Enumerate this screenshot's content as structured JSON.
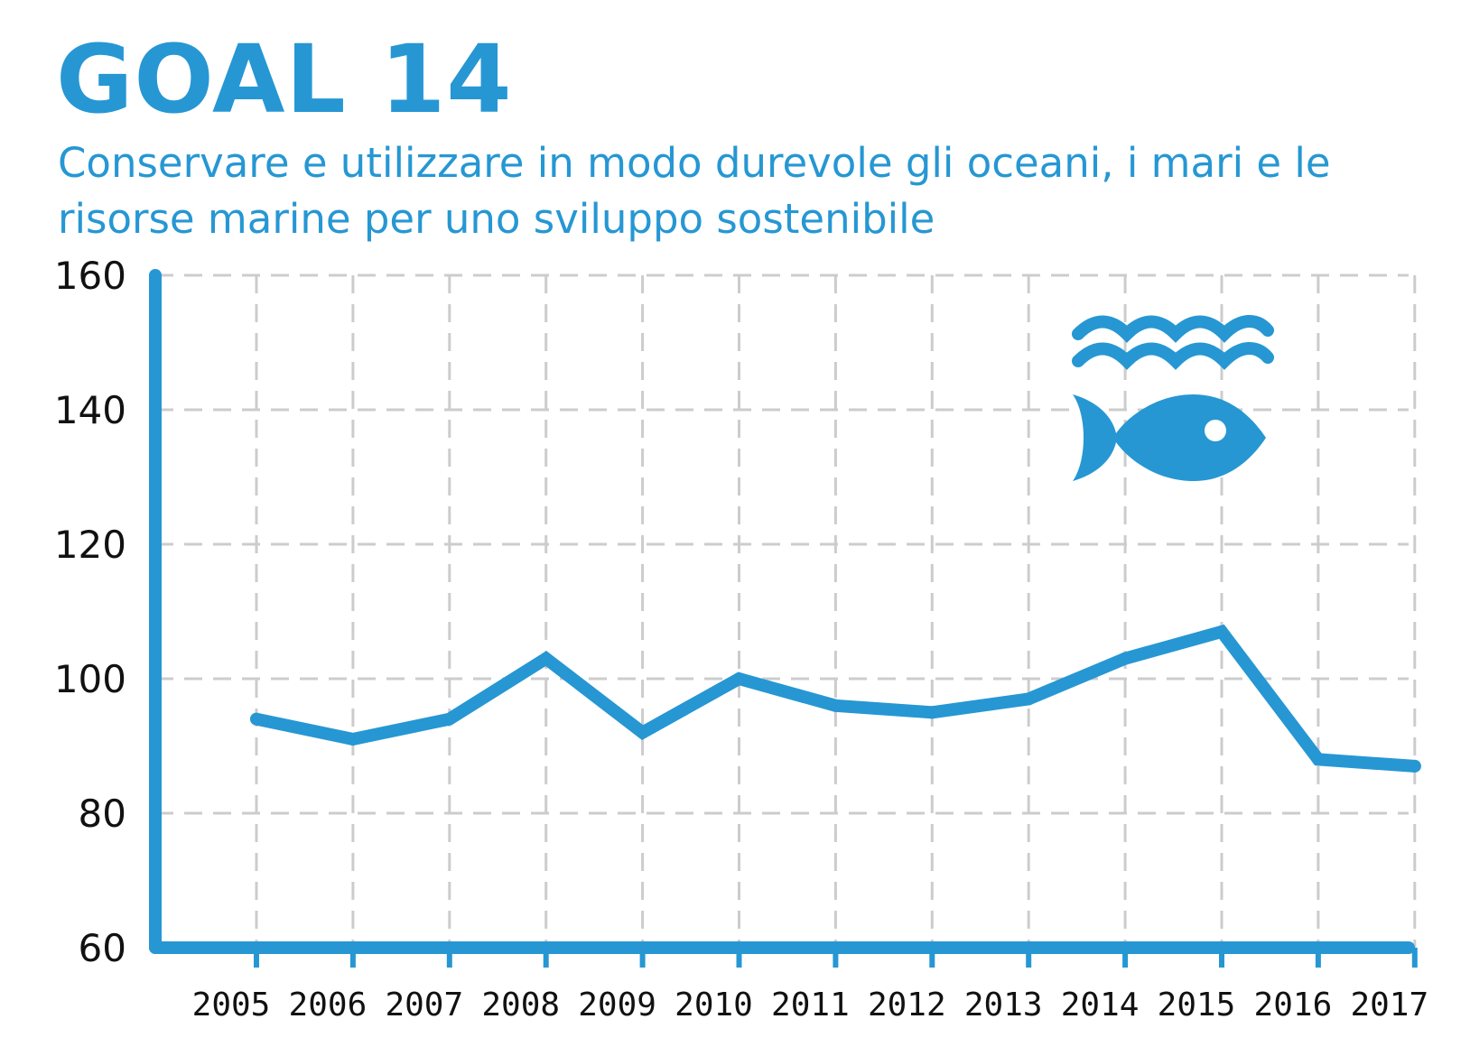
{
  "header": {
    "title": "GOAL 14",
    "subtitle": "Conservare e utilizzare in modo durevole gli oceani, i mari e le risorse marine per uno sviluppo sostenibile"
  },
  "icon": {
    "name": "water-fish-icon",
    "color": "#2697d3"
  },
  "chart_data": {
    "type": "line",
    "title": "",
    "xlabel": "",
    "ylabel": "",
    "x": [
      "2005",
      "2006",
      "2007",
      "2008",
      "2009",
      "2010",
      "2011",
      "2012",
      "2013",
      "2014",
      "2015",
      "2016",
      "2017"
    ],
    "series": [
      {
        "values": [
          94,
          91,
          94,
          103,
          92,
          100,
          96,
          95,
          97,
          103,
          107,
          88,
          87
        ]
      }
    ],
    "ylim": [
      60,
      160
    ],
    "yticks": [
      60,
      80,
      100,
      120,
      140,
      160
    ],
    "grid": true,
    "legend": "none",
    "colors": {
      "line": "#2697d3",
      "axis": "#2697d3",
      "grid": "#cccccc"
    }
  }
}
